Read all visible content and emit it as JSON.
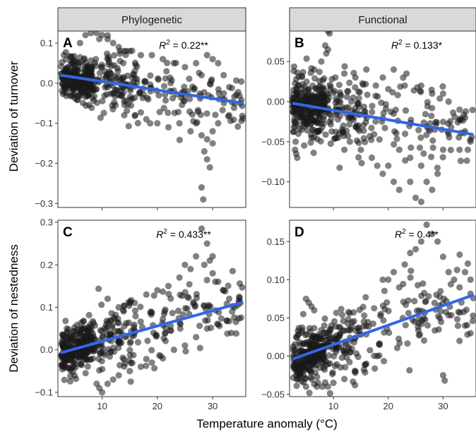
{
  "chart_data": [
    {
      "type": "scatter",
      "panel_label": "A",
      "facet_col": "Phylogenetic",
      "r2": {
        "prefix": "R",
        "sup": "2",
        "text": " = 0.22**"
      },
      "xlabel": "Temperature anomaly (°C)",
      "ylabel": "Deviation of turnover",
      "xlim": [
        2,
        36
      ],
      "ylim": [
        -0.31,
        0.13
      ],
      "x_ticks": [
        10,
        20,
        30
      ],
      "x_ticklabels": [],
      "y_ticks": [
        -0.3,
        -0.2,
        -0.1,
        0.0,
        0.1
      ],
      "y_ticklabels": [
        "−0.3",
        "−0.2",
        "−0.1",
        "0.0",
        "0.1"
      ],
      "fit": {
        "x": [
          2.5,
          35.5
        ],
        "y": [
          0.02,
          -0.05
        ]
      },
      "cloud": {
        "n": 460,
        "spread": 0.026,
        "slope": -0.00212,
        "intercept": 0.025
      },
      "points": [
        [
          7,
          0.12
        ],
        [
          8,
          0.125
        ],
        [
          9,
          0.125
        ],
        [
          10,
          0.12
        ],
        [
          11,
          0.11
        ],
        [
          12,
          0.1
        ],
        [
          6,
          0.1
        ],
        [
          9.5,
          0.11
        ],
        [
          13,
          0.09
        ],
        [
          14,
          0.08
        ],
        [
          15,
          0.08
        ],
        [
          17,
          0.07
        ],
        [
          19,
          0.07
        ],
        [
          21,
          0.06
        ],
        [
          23,
          0.05
        ],
        [
          25,
          0.04
        ],
        [
          27,
          0.05
        ],
        [
          29,
          0.07
        ],
        [
          30,
          0.06
        ],
        [
          31,
          0.05
        ],
        [
          28,
          0.02
        ],
        [
          32,
          0.02
        ],
        [
          33,
          -0.01
        ],
        [
          14,
          -0.08
        ],
        [
          16,
          -0.08
        ],
        [
          18,
          -0.09
        ],
        [
          20,
          -0.1
        ],
        [
          22,
          -0.11
        ],
        [
          24,
          -0.1
        ],
        [
          26,
          -0.12
        ],
        [
          27,
          -0.1
        ],
        [
          28,
          -0.13
        ],
        [
          29,
          -0.14
        ],
        [
          30,
          -0.12
        ],
        [
          28.5,
          -0.17
        ],
        [
          29,
          -0.19
        ],
        [
          29.5,
          -0.21
        ],
        [
          28,
          -0.26
        ],
        [
          28.3,
          -0.29
        ],
        [
          30,
          -0.15
        ],
        [
          31,
          -0.1
        ],
        [
          33,
          -0.08
        ],
        [
          34,
          -0.05
        ],
        [
          35,
          -0.05
        ]
      ]
    },
    {
      "type": "scatter",
      "panel_label": "B",
      "facet_col": "Functional",
      "r2": {
        "prefix": "R",
        "sup": "2",
        "text": " = 0.133*"
      },
      "xlabel": "Temperature anomaly (°C)",
      "ylabel": "",
      "xlim": [
        2,
        36
      ],
      "ylim": [
        -0.132,
        0.088
      ],
      "x_ticks": [
        10,
        20,
        30
      ],
      "x_ticklabels": [],
      "y_ticks": [
        -0.1,
        -0.05,
        0.0,
        0.05
      ],
      "y_ticklabels": [
        "−0.10",
        "−0.05",
        "0.00",
        "0.05"
      ],
      "fit": {
        "x": [
          2.5,
          35.5
        ],
        "y": [
          -0.002,
          -0.041
        ]
      },
      "cloud": {
        "n": 480,
        "spread": 0.018,
        "slope": -0.00118,
        "intercept": 0.001
      },
      "points": [
        [
          9,
          0.088
        ],
        [
          9.3,
          0.085
        ],
        [
          8.5,
          0.07
        ],
        [
          9,
          0.065
        ],
        [
          8.7,
          0.06
        ],
        [
          7.8,
          0.05
        ],
        [
          6.5,
          0.04
        ],
        [
          12,
          0.035
        ],
        [
          14,
          0.03
        ],
        [
          16,
          0.04
        ],
        [
          19,
          0.03
        ],
        [
          21,
          0.04
        ],
        [
          23,
          0.02
        ],
        [
          26,
          0.02
        ],
        [
          28,
          0.01
        ],
        [
          30,
          0.01
        ],
        [
          31,
          0.0
        ],
        [
          33,
          -0.01
        ],
        [
          34,
          -0.02
        ],
        [
          35,
          -0.05
        ],
        [
          34.5,
          -0.06
        ],
        [
          33,
          -0.06
        ],
        [
          13,
          -0.05
        ],
        [
          15,
          -0.06
        ],
        [
          17,
          -0.07
        ],
        [
          18,
          -0.08
        ],
        [
          19,
          -0.09
        ],
        [
          20,
          -0.08
        ],
        [
          21,
          -0.1
        ],
        [
          22,
          -0.11
        ],
        [
          24,
          -0.1
        ],
        [
          25,
          -0.12
        ],
        [
          26,
          -0.125
        ],
        [
          27,
          -0.1
        ],
        [
          28,
          -0.11
        ],
        [
          29,
          -0.09
        ],
        [
          26,
          -0.08
        ],
        [
          24,
          -0.07
        ],
        [
          22,
          -0.06
        ],
        [
          11,
          -0.04
        ],
        [
          12,
          -0.06
        ],
        [
          30,
          -0.06
        ],
        [
          31,
          -0.04
        ],
        [
          3,
          -0.06
        ],
        [
          3.2,
          -0.065
        ],
        [
          3.4,
          -0.07
        ],
        [
          3.1,
          -0.05
        ],
        [
          3.6,
          -0.04
        ]
      ]
    },
    {
      "type": "scatter",
      "panel_label": "C",
      "facet_col": "",
      "r2": {
        "prefix": "R",
        "sup": "2",
        "text": " = 0.433**"
      },
      "xlabel": "Temperature anomaly (°C)",
      "ylabel": "Deviation of nestedness",
      "xlim": [
        2,
        36
      ],
      "ylim": [
        -0.11,
        0.305
      ],
      "x_ticks": [
        10,
        20,
        30
      ],
      "x_ticklabels": [
        "10",
        "20",
        "30"
      ],
      "y_ticks": [
        -0.1,
        0.0,
        0.1,
        0.2,
        0.3
      ],
      "y_ticklabels": [
        "−0.1",
        "0.0",
        "0.1",
        "0.2",
        "0.3"
      ],
      "fit": {
        "x": [
          2.5,
          35.5
        ],
        "y": [
          -0.007,
          0.112
        ]
      },
      "cloud": {
        "n": 480,
        "spread": 0.028,
        "slope": 0.0036,
        "intercept": -0.016
      },
      "points": [
        [
          28,
          0.285
        ],
        [
          29,
          0.25
        ],
        [
          30,
          0.22
        ],
        [
          29.5,
          0.21
        ],
        [
          28.5,
          0.2
        ],
        [
          27,
          0.22
        ],
        [
          26,
          0.19
        ],
        [
          25,
          0.2
        ],
        [
          24,
          0.17
        ],
        [
          22,
          0.15
        ],
        [
          20,
          0.14
        ],
        [
          18,
          0.13
        ],
        [
          30,
          0.18
        ],
        [
          31,
          0.16
        ],
        [
          32,
          0.14
        ],
        [
          33,
          0.12
        ],
        [
          34,
          0.1
        ],
        [
          35,
          0.11
        ],
        [
          10,
          -0.1
        ],
        [
          9.5,
          -0.09
        ],
        [
          11,
          -0.08
        ],
        [
          12,
          -0.07
        ],
        [
          9,
          -0.08
        ],
        [
          13,
          -0.06
        ],
        [
          15,
          -0.05
        ],
        [
          17,
          -0.04
        ],
        [
          19,
          -0.03
        ],
        [
          21,
          -0.02
        ],
        [
          23,
          0.0
        ],
        [
          25,
          0.01
        ],
        [
          27,
          0.03
        ],
        [
          29,
          0.05
        ],
        [
          31,
          0.06
        ],
        [
          15,
          0.11
        ],
        [
          13,
          0.1
        ],
        [
          11,
          0.12
        ]
      ]
    },
    {
      "type": "scatter",
      "panel_label": "D",
      "facet_col": "",
      "r2": {
        "prefix": "R",
        "sup": "2",
        "text": " = 0.4**"
      },
      "xlabel": "Temperature anomaly (°C)",
      "ylabel": "",
      "xlim": [
        2,
        36
      ],
      "ylim": [
        -0.053,
        0.178
      ],
      "x_ticks": [
        10,
        20,
        30
      ],
      "x_ticklabels": [
        "10",
        "20",
        "30"
      ],
      "y_ticks": [
        -0.05,
        0.0,
        0.05,
        0.1,
        0.15
      ],
      "y_ticklabels": [
        "−0.05",
        "0.00",
        "0.05",
        "0.10",
        "0.15"
      ],
      "fit": {
        "x": [
          2.5,
          35.5
        ],
        "y": [
          -0.004,
          0.08
        ]
      },
      "cloud": {
        "n": 480,
        "spread": 0.016,
        "slope": 0.00255,
        "intercept": -0.011
      },
      "points": [
        [
          27,
          0.172
        ],
        [
          28,
          0.16
        ],
        [
          26,
          0.15
        ],
        [
          25,
          0.14
        ],
        [
          24,
          0.135
        ],
        [
          29,
          0.15
        ],
        [
          30,
          0.13
        ],
        [
          23,
          0.12
        ],
        [
          21,
          0.11
        ],
        [
          20,
          0.1
        ],
        [
          19,
          0.1
        ],
        [
          22,
          0.09
        ],
        [
          31,
          0.11
        ],
        [
          32,
          0.1
        ],
        [
          33,
          0.09
        ],
        [
          34,
          0.11
        ],
        [
          35,
          0.1
        ],
        [
          30,
          -0.025
        ],
        [
          30.3,
          -0.032
        ],
        [
          34,
          0.04
        ],
        [
          35,
          0.03
        ],
        [
          33,
          0.02
        ],
        [
          18,
          0.0
        ],
        [
          16,
          -0.01
        ],
        [
          14,
          -0.02
        ],
        [
          12,
          -0.03
        ],
        [
          10,
          -0.035
        ],
        [
          9,
          -0.04
        ],
        [
          8,
          -0.04
        ],
        [
          7,
          -0.04
        ],
        [
          5,
          -0.04
        ],
        [
          6,
          0.065
        ],
        [
          5.5,
          0.07
        ],
        [
          5,
          0.075
        ],
        [
          6.5,
          0.06
        ],
        [
          4.5,
          0.055
        ]
      ]
    }
  ],
  "axis": {
    "x_title": "Temperature anomaly (°C)",
    "y_title_top": "Deviation of turnover",
    "y_title_bottom": "Deviation of nestedness"
  },
  "colors": {
    "points": "#1a1a1a",
    "fit_line": "#3366e6",
    "strip_bg": "#d9d9d9",
    "panel_border": "#333333"
  }
}
